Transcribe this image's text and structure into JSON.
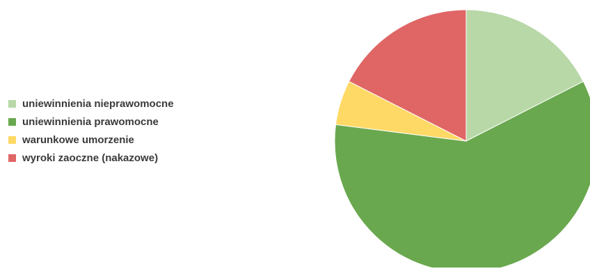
{
  "chart_data": {
    "type": "pie",
    "title": "",
    "slices": [
      {
        "label": "uniewinnienia nieprawomocne",
        "value": 17.5,
        "color": "#b8d8a8"
      },
      {
        "label": "uniewinnienia prawomocne",
        "value": 59.5,
        "color": "#6aa84f"
      },
      {
        "label": "warunkowe umorzenie",
        "value": 5.5,
        "color": "#ffd966"
      },
      {
        "label": "wyroki zaoczne (nakazowe)",
        "value": 17.5,
        "color": "#e06666"
      }
    ],
    "legend_position": "left",
    "start_angle_deg": 0,
    "direction": "clockwise"
  }
}
